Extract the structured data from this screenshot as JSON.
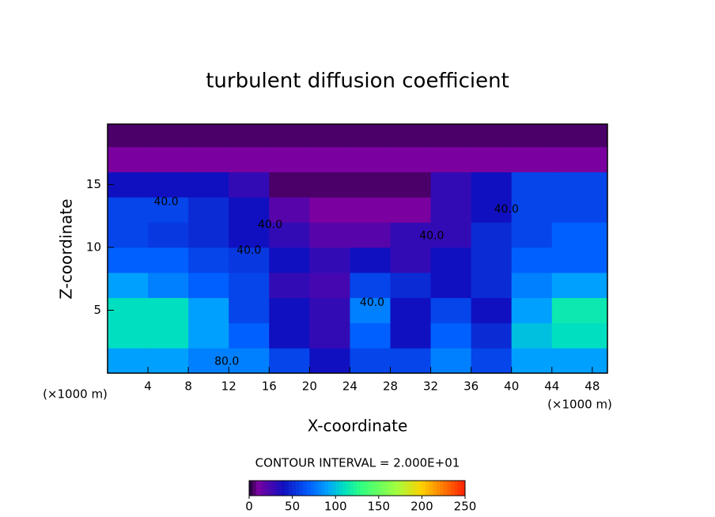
{
  "chart_data": {
    "type": "heatmap",
    "title": "turbulent diffusion coefficient",
    "x_label": "X-coordinate",
    "y_label": "Z-coordinate",
    "x_unit_left": "(×1000 m)",
    "x_unit_right": "(×1000 m)",
    "contour_note": "CONTOUR INTERVAL = 2.000E+01",
    "xlim": [
      0,
      49.5
    ],
    "ylim": [
      0,
      19.8
    ],
    "xticks": [
      4,
      8,
      12,
      16,
      20,
      24,
      28,
      32,
      36,
      40,
      44,
      48
    ],
    "yticks": [
      5,
      10,
      15
    ],
    "x": [
      2,
      6,
      10,
      14,
      18,
      22,
      26,
      30,
      34,
      38,
      42,
      46
    ],
    "y": [
      1,
      3,
      5,
      7,
      9,
      11,
      13,
      15,
      17,
      19
    ],
    "z": [
      [
        90,
        90,
        80,
        80,
        60,
        40,
        60,
        60,
        80,
        60,
        90,
        90
      ],
      [
        110,
        110,
        90,
        70,
        40,
        30,
        70,
        40,
        70,
        50,
        100,
        110
      ],
      [
        110,
        110,
        90,
        60,
        40,
        30,
        80,
        40,
        60,
        40,
        90,
        115
      ],
      [
        90,
        80,
        70,
        60,
        30,
        25,
        60,
        50,
        40,
        50,
        80,
        90
      ],
      [
        70,
        70,
        60,
        55,
        40,
        30,
        40,
        30,
        40,
        50,
        70,
        70
      ],
      [
        60,
        55,
        50,
        40,
        30,
        20,
        20,
        30,
        30,
        50,
        60,
        70
      ],
      [
        60,
        60,
        50,
        40,
        20,
        10,
        10,
        10,
        30,
        40,
        60,
        60
      ],
      [
        40,
        40,
        40,
        30,
        5,
        5,
        5,
        5,
        30,
        40,
        60,
        60
      ],
      [
        10,
        10,
        10,
        10,
        10,
        10,
        10,
        10,
        10,
        10,
        10,
        10
      ],
      [
        5,
        5,
        5,
        5,
        5,
        5,
        5,
        5,
        5,
        5,
        5,
        5
      ]
    ],
    "contour_labels": [
      {
        "x": 5.8,
        "y": 13.6,
        "label": "40.0"
      },
      {
        "x": 16.1,
        "y": 11.8,
        "label": "40.0"
      },
      {
        "x": 14,
        "y": 9.75,
        "label": "40.0"
      },
      {
        "x": 32.1,
        "y": 10.9,
        "label": "40.0"
      },
      {
        "x": 39.5,
        "y": 13,
        "label": "40.0"
      },
      {
        "x": 26.2,
        "y": 5.6,
        "label": "40.0"
      },
      {
        "x": 11.8,
        "y": 0.9,
        "label": "80.0"
      }
    ],
    "colorscale": [
      [
        0,
        "#1a0030"
      ],
      [
        10,
        "#7a00a0"
      ],
      [
        40,
        "#1010c0"
      ],
      [
        70,
        "#0060ff"
      ],
      [
        90,
        "#00a0ff"
      ],
      [
        110,
        "#00e0c0"
      ],
      [
        130,
        "#30ff80"
      ],
      [
        170,
        "#a0ff40"
      ],
      [
        200,
        "#ffd000"
      ],
      [
        250,
        "#ff2000"
      ]
    ],
    "colorbar_lim": [
      0,
      250
    ],
    "colorbar_ticks": [
      0,
      50,
      100,
      150,
      200,
      250
    ]
  }
}
